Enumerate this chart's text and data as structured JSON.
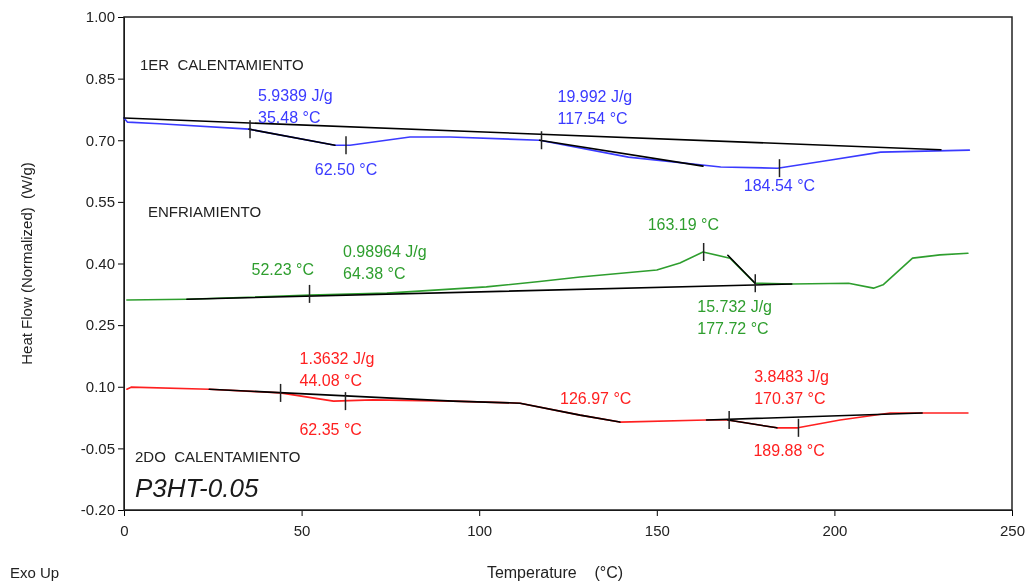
{
  "chart_data": {
    "type": "line",
    "xlabel": "Temperature    (°C)",
    "ylabel": "Heat Flow (Normalized)  (W/g)",
    "xlim": [
      0,
      250
    ],
    "xticks": [
      0,
      50,
      100,
      150,
      200,
      250
    ],
    "ylim": [
      -0.2,
      1.0
    ],
    "yticks": [
      {
        "value": 1.0,
        "label": "1.00"
      },
      0.85,
      {
        "value": 0.7,
        "label": "0.70"
      },
      0.55,
      {
        "value": 0.4,
        "label": "0.40"
      },
      0.25,
      {
        "value": 0.1,
        "label": "0.10"
      },
      -0.05,
      {
        "value": -0.2,
        "label": "-0.20"
      }
    ],
    "grid": false,
    "marker": "none",
    "line_style": "solid",
    "series": [
      {
        "color": "#3a3aff",
        "x": [
          0,
          1,
          10,
          35.2,
          59.4,
          63.6,
          80.5,
          91.8,
          117,
          142,
          168,
          184,
          199,
          213,
          238
        ],
        "values": [
          0.754,
          0.744,
          0.74,
          0.727,
          0.688,
          0.688,
          0.708,
          0.708,
          0.7,
          0.659,
          0.635,
          0.632,
          0.652,
          0.671,
          0.676
        ]
      },
      {
        "color": "#2e9e2e",
        "x": [
          0.8,
          17.7,
          52.4,
          74,
          102,
          117,
          128.4,
          150,
          156.5,
          163,
          170.6,
          177.6,
          188,
          204,
          211,
          213.7,
          222,
          229.7,
          237.6
        ],
        "values": [
          0.311,
          0.313,
          0.323,
          0.328,
          0.343,
          0.356,
          0.367,
          0.384,
          0.401,
          0.428,
          0.413,
          0.352,
          0.35,
          0.352,
          0.34,
          0.348,
          0.413,
          0.421,
          0.425
        ]
      },
      {
        "color": "#ff2020",
        "x": [
          0.8,
          2,
          24,
          44,
          59,
          70,
          92.6,
          111.5,
          128.4,
          139.6,
          164,
          170,
          183.8,
          189.7,
          201.6,
          215.7,
          237.6
        ],
        "values": [
          0.094,
          0.099,
          0.094,
          0.085,
          0.065,
          0.068,
          0.065,
          0.06,
          0.031,
          0.014,
          0.019,
          0.019,
          0.0,
          0.0,
          0.019,
          0.036,
          0.036
        ]
      },
      {
        "color": "#000000",
        "x": [
          0,
          230
        ],
        "values": [
          0.754,
          0.677
        ]
      },
      {
        "color": "#000000",
        "x": [
          35.2,
          59.4
        ],
        "values": [
          0.727,
          0.688
        ]
      },
      {
        "color": "#000000",
        "x": [
          117,
          163
        ],
        "values": [
          0.7,
          0.637
        ]
      },
      {
        "color": "#000000",
        "x": [
          17.7,
          188
        ],
        "values": [
          0.313,
          0.35
        ]
      },
      {
        "color": "#000000",
        "x": [
          170,
          177.7
        ],
        "values": [
          0.42,
          0.352
        ]
      },
      {
        "color": "#000000",
        "x": [
          24,
          92.6,
          111.5,
          128.4,
          139.6
        ],
        "values": [
          0.094,
          0.065,
          0.06,
          0.031,
          0.014
        ]
      },
      {
        "color": "#000000",
        "x": [
          164,
          224.7
        ],
        "values": [
          0.019,
          0.036
        ]
      },
      {
        "color": "#000000",
        "x": [
          170,
          183.8
        ],
        "values": [
          0.019,
          0.0
        ]
      }
    ],
    "annotations": [
      {
        "text": "5.9389 J/g\n35.48 °C",
        "x": 35.48,
        "y": 0.727
      },
      {
        "text": "62.50 °C",
        "x": 62.5,
        "y": 0.688
      },
      {
        "text": "19.992 J/g\n117.54 °C",
        "x": 117.54,
        "y": 0.7
      },
      {
        "text": "184.54 °C",
        "x": 184.54,
        "y": 0.632
      },
      {
        "text": "52.23 °C",
        "x": 52.23,
        "y": 0.326
      },
      "0.98964 J/g\n64.38 °C",
      {
        "text": "163.19 °C",
        "x": 163.19,
        "y": 0.428
      },
      {
        "text": "15.732 J/g\n177.72 °C",
        "x": 177.72,
        "y": 0.352
      },
      {
        "text": "1.3632 J/g\n44.08 °C",
        "x": 44.08,
        "y": 0.085
      },
      {
        "text": "62.35 °C",
        "x": 62.35,
        "y": 0.065
      },
      "126.97 °C",
      {
        "text": "3.8483 J/g\n170.37 °C",
        "x": 170.37,
        "y": 0.019
      },
      {
        "text": "189.88 °C",
        "x": 189.88,
        "y": 0.0
      },
      "P3HT-0.05",
      "Exo Up",
      "1ER  CALENTAMIENTO",
      "ENFRIAMIENTO",
      "2DO  CALENTAMIENTO"
    ]
  }
}
